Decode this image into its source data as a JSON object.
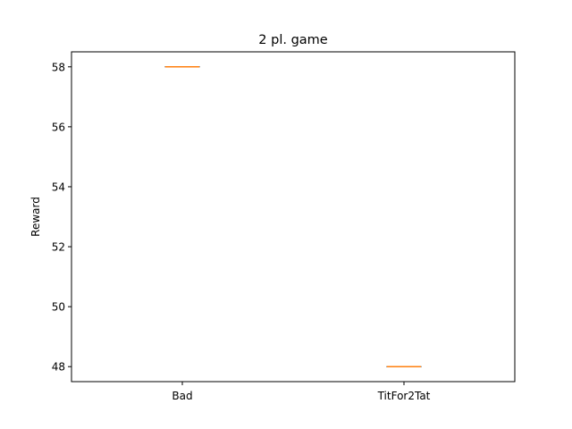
{
  "chart_data": {
    "type": "box",
    "title": "2 pl. game",
    "xlabel": "",
    "ylabel": "Reward",
    "categories": [
      "Bad",
      "TitFor2Tat"
    ],
    "values": [
      58,
      48
    ],
    "box_stats": [
      {
        "category": "Bad",
        "min": 58,
        "q1": 58,
        "median": 58,
        "q3": 58,
        "max": 58
      },
      {
        "category": "TitFor2Tat",
        "min": 48,
        "q1": 48,
        "median": 48,
        "q3": 48,
        "max": 48
      }
    ],
    "ylim": [
      47.5,
      58.5
    ],
    "yticks": [
      48,
      50,
      52,
      54,
      56,
      58
    ],
    "ytick_labels": [
      "48",
      "50",
      "52",
      "54",
      "56",
      "58"
    ],
    "grid": false,
    "colors": {
      "box": "#000000",
      "median": "#ff7f0e",
      "axes": "#000000"
    }
  }
}
